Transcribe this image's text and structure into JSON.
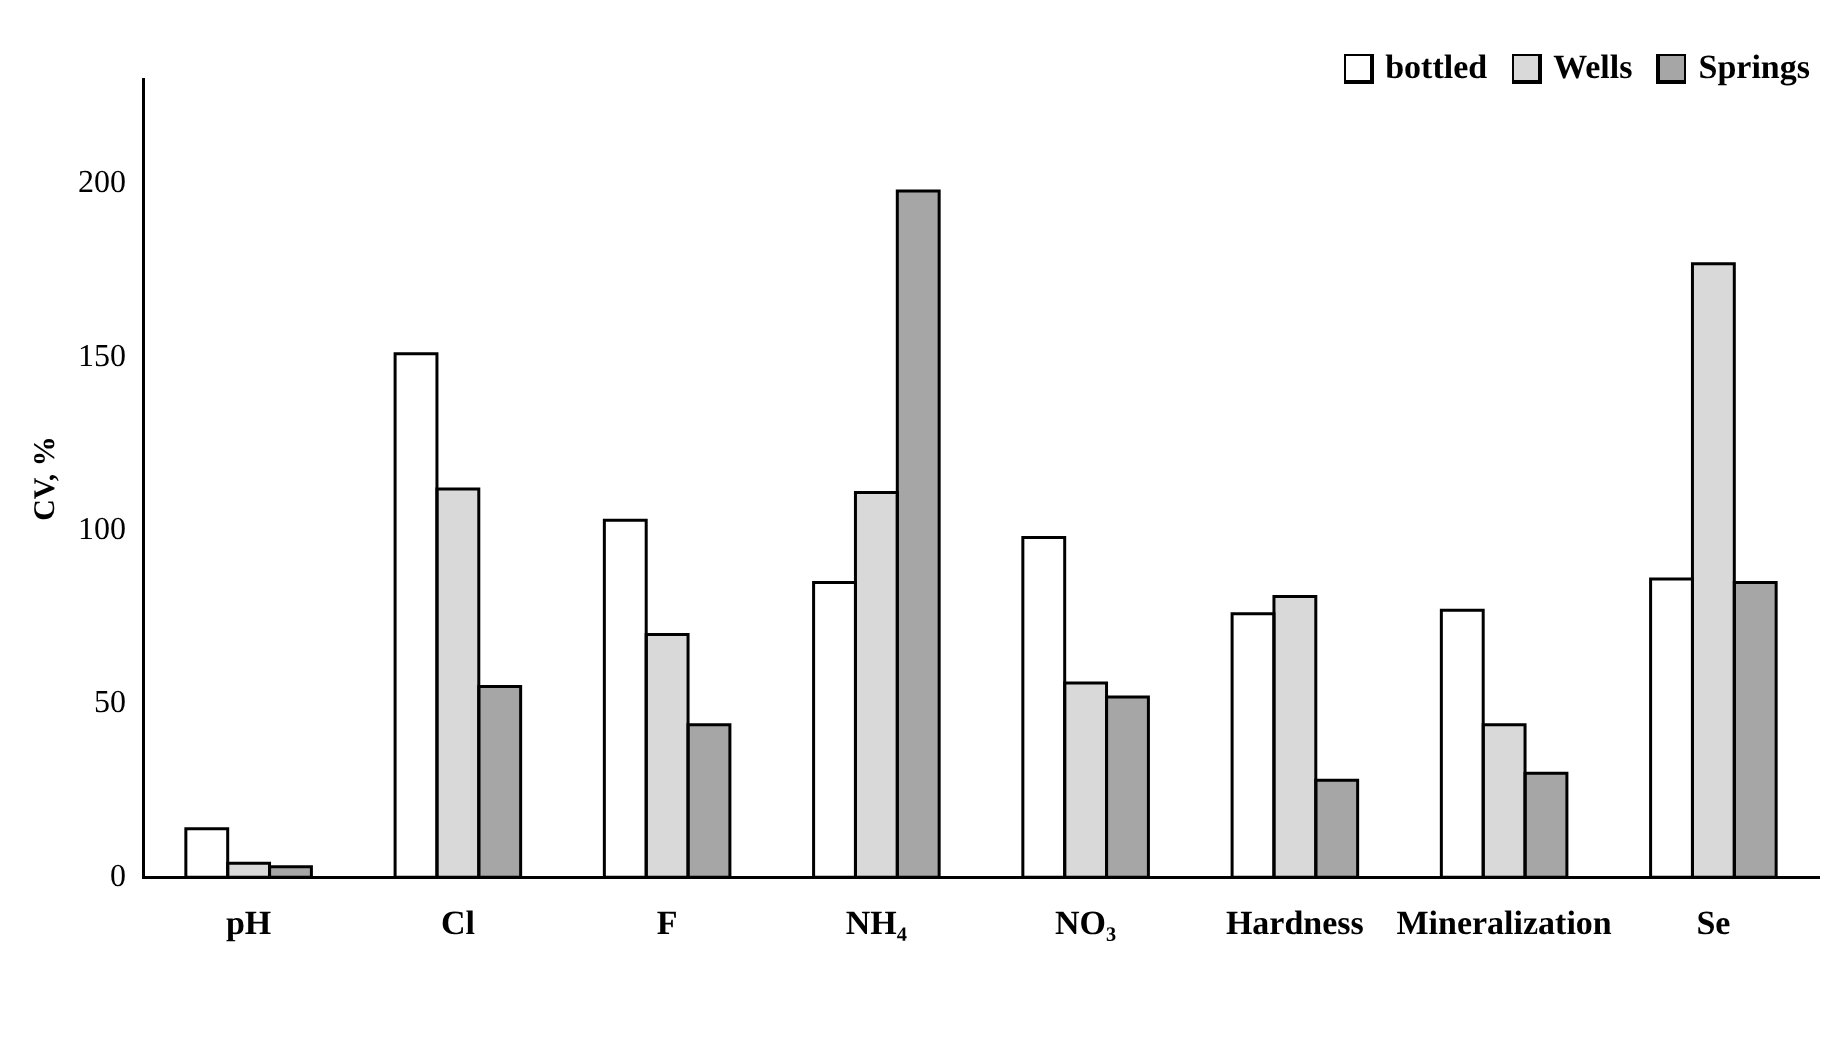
{
  "chart_data": {
    "type": "bar",
    "ylabel": "CV, %",
    "categories": [
      "pH",
      "Cl",
      "F",
      "NH₄",
      "NO₃",
      "Hardness",
      "Mineralization",
      "Se"
    ],
    "series": [
      {
        "name": "bottled",
        "color": "#ffffff",
        "values": [
          14,
          151,
          103,
          85,
          98,
          76,
          77,
          86
        ]
      },
      {
        "name": "Wells",
        "color": "#d9d9d9",
        "values": [
          4,
          112,
          70,
          111,
          56,
          81,
          44,
          177
        ]
      },
      {
        "name": "Springs",
        "color": "#a6a6a6",
        "values": [
          3,
          55,
          44,
          198,
          52,
          28,
          30,
          85
        ]
      }
    ],
    "ylim": [
      0,
      230
    ],
    "yticks": [
      0,
      50,
      100,
      150,
      200
    ],
    "grid": false,
    "legend": "top right"
  }
}
